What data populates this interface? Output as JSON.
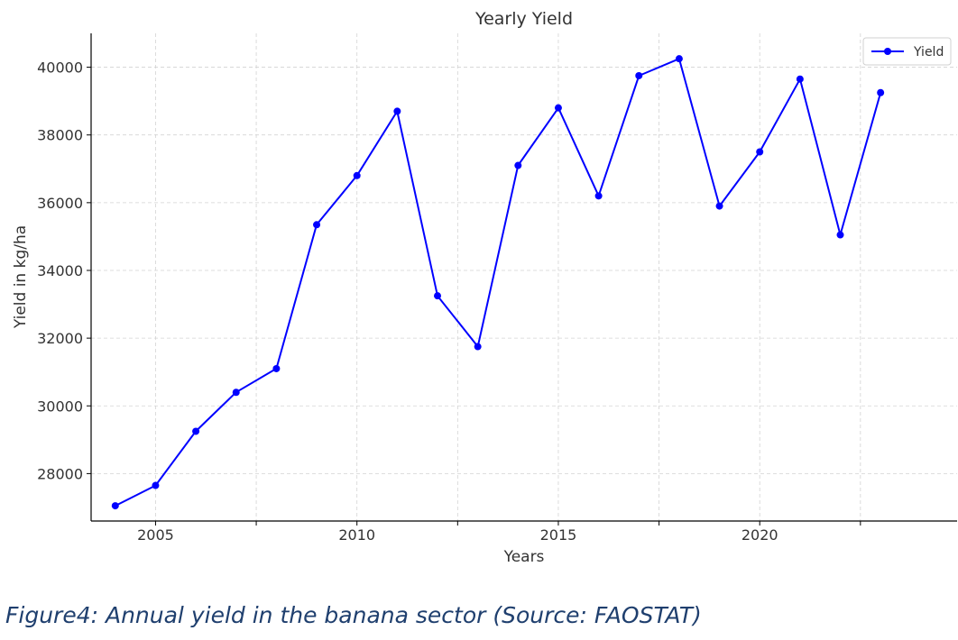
{
  "chart_data": {
    "type": "line",
    "title": "Yearly Yield",
    "xlabel": "Years",
    "ylabel": "Yield in kg/ha",
    "xlim": [
      2003.4,
      2024.9
    ],
    "ylim": [
      26600,
      41000
    ],
    "xticks": [
      2005,
      2010,
      2015,
      2020
    ],
    "xticks_minor": [
      2007.5,
      2012.5,
      2017.5,
      2022.5
    ],
    "yticks": [
      28000,
      30000,
      32000,
      34000,
      36000,
      38000,
      40000
    ],
    "grid": true,
    "legend": {
      "position": "top-right",
      "entries": [
        "Yield"
      ]
    },
    "series": [
      {
        "name": "Yield",
        "color": "#0000ff",
        "marker": "circle",
        "x": [
          2004,
          2005,
          2006,
          2007,
          2008,
          2009,
          2010,
          2011,
          2012,
          2013,
          2014,
          2015,
          2016,
          2017,
          2018,
          2019,
          2020,
          2021,
          2022,
          2023
        ],
        "values": [
          27050,
          27650,
          29250,
          30400,
          31100,
          35350,
          36800,
          38700,
          33250,
          31750,
          37100,
          38800,
          36200,
          39750,
          40250,
          35900,
          37500,
          39650,
          35050,
          39250
        ]
      }
    ]
  },
  "caption": "Figure4: Annual yield in the banana sector (Source: FAOSTAT)"
}
